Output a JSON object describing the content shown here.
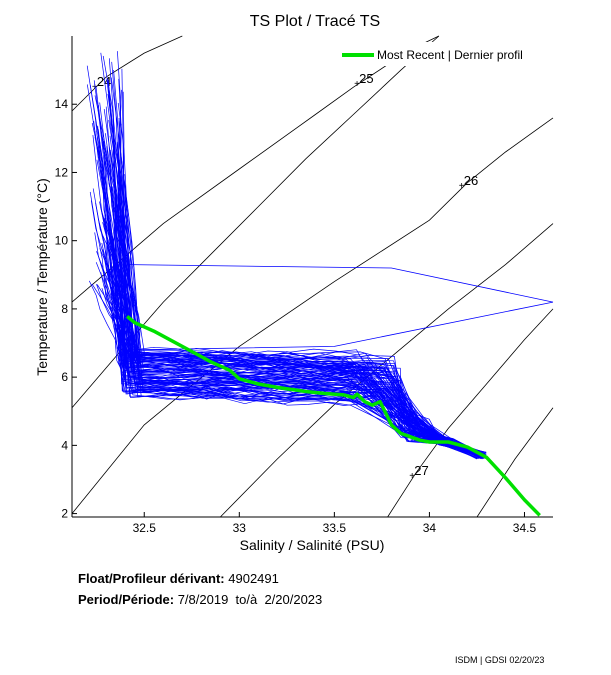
{
  "chart_data": {
    "type": "line",
    "title": "TS Plot / Tracé TS",
    "xlabel": "Salinity / Salinité (PSU)",
    "ylabel": "Temperature / Température (°C)",
    "xlim": [
      32.12,
      34.65
    ],
    "ylim": [
      1.9,
      16.0
    ],
    "xticks": [
      32.5,
      33,
      33.5,
      34,
      34.5
    ],
    "yticks": [
      2,
      4,
      6,
      8,
      10,
      12,
      14
    ],
    "legend": {
      "position": "top-right",
      "entries": [
        "Most Recent | Dernier profil"
      ]
    },
    "density_contours": [
      {
        "label": "25",
        "label_at": [
          33.62,
          14.6
        ],
        "points": [
          [
            32.12,
            8.2
          ],
          [
            32.6,
            10.5
          ],
          [
            33.0,
            12.1
          ],
          [
            33.4,
            13.7
          ],
          [
            33.6,
            14.5
          ],
          [
            33.9,
            15.6
          ],
          [
            34.05,
            16.0
          ]
        ]
      },
      {
        "label": "26",
        "label_at": [
          34.17,
          11.6
        ],
        "points": [
          [
            32.12,
            2.0
          ],
          [
            32.5,
            4.6
          ],
          [
            33.0,
            6.9
          ],
          [
            33.5,
            8.8
          ],
          [
            34.0,
            10.6
          ],
          [
            34.2,
            11.7
          ],
          [
            34.4,
            12.6
          ],
          [
            34.65,
            13.6
          ]
        ]
      },
      {
        "label": "27",
        "label_at": [
          33.91,
          3.1
        ],
        "points": [
          [
            33.78,
            1.9
          ],
          [
            33.93,
            3.2
          ],
          [
            34.1,
            4.5
          ],
          [
            34.3,
            5.8
          ],
          [
            34.5,
            7.1
          ],
          [
            34.65,
            8.0
          ]
        ]
      },
      {
        "label": "24",
        "label_at": [
          32.24,
          14.5
        ],
        "points": [
          [
            32.12,
            13.8
          ],
          [
            32.3,
            14.8
          ],
          [
            32.5,
            15.5
          ],
          [
            32.7,
            16.0
          ]
        ]
      },
      {
        "label": "",
        "label_at": null,
        "points": [
          [
            32.12,
            5.1
          ],
          [
            32.35,
            6.6
          ],
          [
            32.6,
            8.2
          ],
          [
            32.85,
            9.6
          ],
          [
            33.1,
            11.0
          ],
          [
            33.35,
            12.4
          ],
          [
            33.6,
            13.7
          ],
          [
            33.85,
            15.0
          ],
          [
            34.05,
            16.0
          ]
        ]
      },
      {
        "label": "",
        "label_at": null,
        "points": [
          [
            32.9,
            1.9
          ],
          [
            33.2,
            3.6
          ],
          [
            33.5,
            5.2
          ],
          [
            33.8,
            6.6
          ],
          [
            34.1,
            8.0
          ],
          [
            34.4,
            9.3
          ],
          [
            34.65,
            10.5
          ]
        ]
      },
      {
        "label": "",
        "label_at": null,
        "points": [
          [
            34.25,
            1.9
          ],
          [
            34.45,
            3.6
          ],
          [
            34.65,
            5.1
          ]
        ]
      }
    ],
    "series": [
      {
        "name": "Most Recent | Dernier profil",
        "color": "#00e000",
        "points": [
          [
            32.41,
            7.78
          ],
          [
            32.45,
            7.6
          ],
          [
            32.55,
            7.35
          ],
          [
            32.65,
            7.05
          ],
          [
            32.75,
            6.75
          ],
          [
            32.85,
            6.45
          ],
          [
            32.95,
            6.2
          ],
          [
            33.0,
            5.95
          ],
          [
            33.1,
            5.8
          ],
          [
            33.2,
            5.7
          ],
          [
            33.35,
            5.58
          ],
          [
            33.45,
            5.52
          ],
          [
            33.55,
            5.48
          ],
          [
            33.6,
            5.4
          ],
          [
            33.62,
            5.5
          ],
          [
            33.66,
            5.28
          ],
          [
            33.7,
            5.18
          ],
          [
            33.74,
            5.28
          ],
          [
            33.77,
            4.95
          ],
          [
            33.8,
            4.6
          ],
          [
            33.85,
            4.35
          ],
          [
            33.9,
            4.25
          ],
          [
            33.95,
            4.15
          ],
          [
            34.0,
            4.1
          ],
          [
            34.1,
            4.1
          ],
          [
            34.2,
            3.95
          ],
          [
            34.3,
            3.65
          ],
          [
            34.4,
            3.05
          ],
          [
            34.5,
            2.4
          ],
          [
            34.58,
            1.95
          ]
        ]
      }
    ],
    "float_profiles_color": "#0000ff"
  },
  "info": {
    "float_label": "Float/Profileur dérivant:",
    "float_value": "4902491",
    "period_label": "Period/Période:",
    "period_value": "7/8/2019  to/à  2/20/2023"
  },
  "credit": "ISDM | GDSI  02/20/23"
}
